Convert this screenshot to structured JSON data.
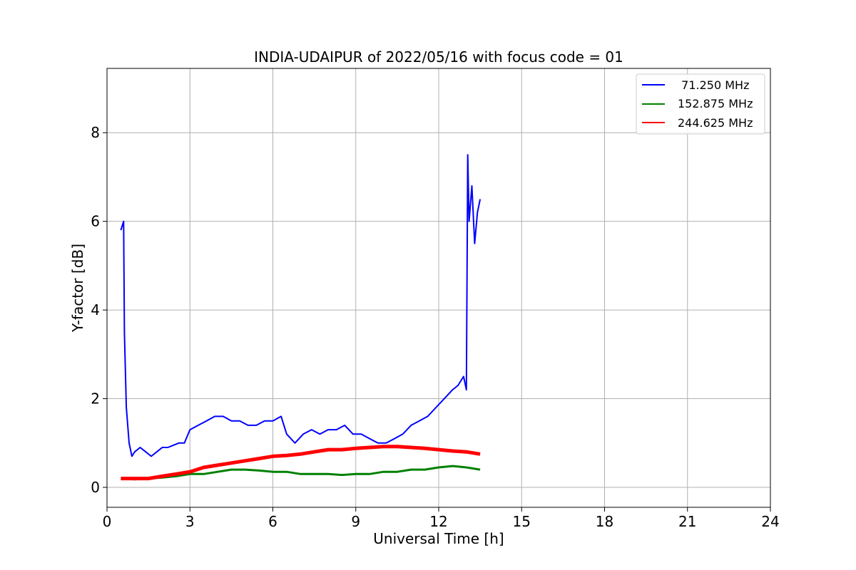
{
  "chart_data": {
    "type": "line",
    "title": "INDIA-UDAIPUR of 2022/05/16 with focus code = 01",
    "xlabel": "Universal Time [h]",
    "ylabel": "Y-factor [dB]",
    "xlim": [
      0,
      24
    ],
    "ylim": [
      -0.45,
      9.45
    ],
    "xticks": [
      0,
      3,
      6,
      9,
      12,
      15,
      18,
      21,
      24
    ],
    "yticks": [
      0,
      2,
      4,
      6,
      8
    ],
    "grid": true,
    "legend_position": "top-right",
    "series": [
      {
        "name": "  71.250 MHz",
        "color": "#0000ff",
        "x": [
          0.5,
          0.55,
          0.6,
          0.63,
          0.7,
          0.8,
          0.9,
          1.0,
          1.2,
          1.4,
          1.6,
          1.8,
          2.0,
          2.2,
          2.4,
          2.6,
          2.8,
          3.0,
          3.3,
          3.6,
          3.9,
          4.2,
          4.5,
          4.8,
          5.1,
          5.4,
          5.7,
          6.0,
          6.3,
          6.5,
          6.8,
          7.1,
          7.4,
          7.7,
          8.0,
          8.3,
          8.6,
          8.9,
          9.2,
          9.5,
          9.8,
          10.1,
          10.4,
          10.7,
          11.0,
          11.3,
          11.6,
          11.9,
          12.2,
          12.5,
          12.7,
          12.9,
          13.0,
          13.05,
          13.1,
          13.2,
          13.3,
          13.4,
          13.5
        ],
        "y": [
          5.8,
          5.9,
          6.0,
          3.5,
          1.8,
          1.0,
          0.7,
          0.8,
          0.9,
          0.8,
          0.7,
          0.8,
          0.9,
          0.9,
          0.95,
          1.0,
          1.0,
          1.3,
          1.4,
          1.5,
          1.6,
          1.6,
          1.5,
          1.5,
          1.4,
          1.4,
          1.5,
          1.5,
          1.6,
          1.2,
          1.0,
          1.2,
          1.3,
          1.2,
          1.3,
          1.3,
          1.4,
          1.2,
          1.2,
          1.1,
          1.0,
          1.0,
          1.1,
          1.2,
          1.4,
          1.5,
          1.6,
          1.8,
          2.0,
          2.2,
          2.3,
          2.5,
          2.2,
          7.5,
          6.0,
          6.8,
          5.5,
          6.2,
          6.5
        ]
      },
      {
        "name": "152.875 MHz",
        "color": "#008000",
        "x": [
          0.5,
          1.0,
          1.5,
          2.0,
          2.5,
          3.0,
          3.5,
          4.0,
          4.5,
          5.0,
          5.5,
          6.0,
          6.5,
          7.0,
          7.5,
          8.0,
          8.5,
          9.0,
          9.5,
          10.0,
          10.5,
          11.0,
          11.5,
          12.0,
          12.5,
          13.0,
          13.5
        ],
        "y": [
          0.2,
          0.18,
          0.2,
          0.22,
          0.25,
          0.3,
          0.3,
          0.35,
          0.4,
          0.4,
          0.38,
          0.35,
          0.35,
          0.3,
          0.3,
          0.3,
          0.28,
          0.3,
          0.3,
          0.35,
          0.35,
          0.4,
          0.4,
          0.45,
          0.48,
          0.45,
          0.4
        ]
      },
      {
        "name": "244.625 MHz",
        "color": "#ff0000",
        "x": [
          0.5,
          1.0,
          1.5,
          2.0,
          2.5,
          3.0,
          3.5,
          4.0,
          4.5,
          5.0,
          5.5,
          6.0,
          6.5,
          7.0,
          7.5,
          8.0,
          8.5,
          9.0,
          9.5,
          10.0,
          10.5,
          11.0,
          11.5,
          12.0,
          12.5,
          13.0,
          13.5
        ],
        "y": [
          0.2,
          0.2,
          0.2,
          0.25,
          0.3,
          0.35,
          0.45,
          0.5,
          0.55,
          0.6,
          0.65,
          0.7,
          0.72,
          0.75,
          0.8,
          0.85,
          0.85,
          0.88,
          0.9,
          0.92,
          0.92,
          0.9,
          0.88,
          0.85,
          0.82,
          0.8,
          0.75
        ]
      }
    ]
  }
}
